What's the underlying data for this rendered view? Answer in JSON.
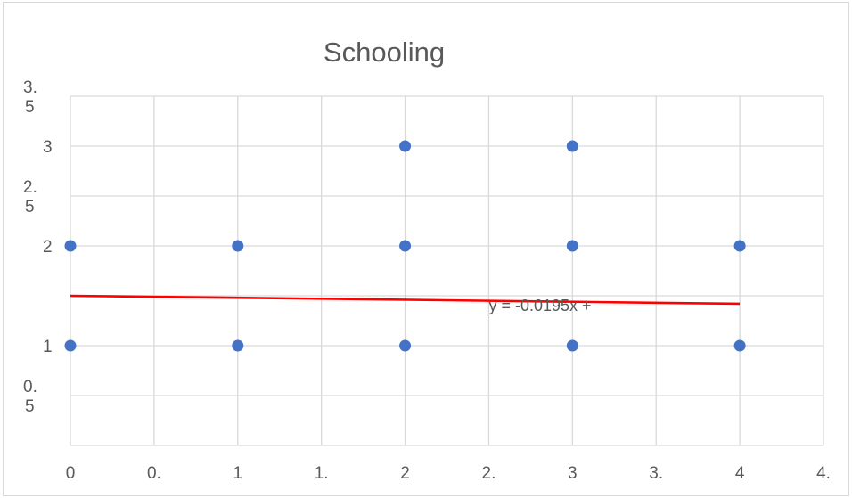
{
  "chart_data": {
    "type": "scatter",
    "title": "Schooling",
    "xlabel": "",
    "ylabel": "",
    "xlim": [
      0,
      4.5
    ],
    "ylim": [
      0,
      3.5
    ],
    "grid": true,
    "legend": "none",
    "x_tick_values": [
      0,
      0.5,
      1,
      1.5,
      2,
      2.5,
      3,
      3.5,
      4,
      4.5
    ],
    "x_tick_labels": [
      "0",
      "0.",
      "1",
      "1.",
      "2",
      "2.",
      "3",
      "3.",
      "4",
      "4."
    ],
    "y_tick_values": [
      0.5,
      1,
      1.5,
      2,
      2.5,
      3,
      3.5
    ],
    "y_tick_labels": [
      [
        "0.",
        "5"
      ],
      [
        "1"
      ],
      [
        ""
      ],
      [
        "2"
      ],
      [
        "2.",
        "5"
      ],
      [
        "3"
      ],
      [
        "3.",
        "5"
      ]
    ],
    "series": [
      {
        "x": [
          0,
          0,
          1,
          1,
          2,
          2,
          2,
          3,
          3,
          3,
          4,
          4
        ],
        "y": [
          1,
          2,
          1,
          2,
          1,
          2,
          3,
          1,
          2,
          3,
          1,
          2
        ],
        "color": "#4472c4"
      }
    ],
    "trendline": {
      "x": [
        0,
        4
      ],
      "y": [
        1.5,
        1.42
      ],
      "color": "#ff0000",
      "label": "y = -0.0195x +",
      "label_x": 2.5,
      "label_y": 1.4
    }
  }
}
